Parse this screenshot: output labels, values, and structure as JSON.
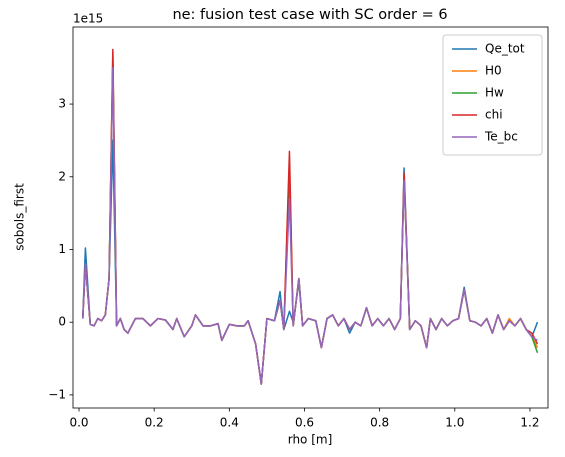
{
  "chart_data": {
    "type": "line",
    "title": "ne: fusion test case with SC order = 6",
    "xlabel": "rho [m]",
    "ylabel": "sobols_first",
    "y_offset_label": "1e15",
    "legend": "upper right",
    "grid": false,
    "xlim": [
      -0.016,
      1.248
    ],
    "ylim": [
      -1.18,
      4.06
    ],
    "xticks": [
      {
        "value": 0,
        "label": "0.0"
      },
      0.2,
      0.4,
      0.6,
      0.8,
      {
        "value": 1,
        "label": "1.0"
      },
      1.2
    ],
    "yticks": [
      {
        "value": -1,
        "label": "−1"
      },
      0,
      1,
      2,
      3
    ],
    "x": [
      0.01,
      0.017,
      0.03,
      0.04,
      0.05,
      0.06,
      0.07,
      0.08,
      0.09,
      0.1,
      0.11,
      0.12,
      0.13,
      0.15,
      0.17,
      0.19,
      0.21,
      0.23,
      0.25,
      0.26,
      0.28,
      0.3,
      0.31,
      0.33,
      0.35,
      0.37,
      0.38,
      0.4,
      0.42,
      0.44,
      0.45,
      0.47,
      0.485,
      0.5,
      0.52,
      0.535,
      0.545,
      0.56,
      0.57,
      0.585,
      0.595,
      0.61,
      0.63,
      0.645,
      0.66,
      0.675,
      0.69,
      0.705,
      0.72,
      0.735,
      0.75,
      0.765,
      0.78,
      0.795,
      0.81,
      0.825,
      0.84,
      0.855,
      0.865,
      0.88,
      0.895,
      0.91,
      0.925,
      0.935,
      0.95,
      0.965,
      0.98,
      0.995,
      1.01,
      1.025,
      1.04,
      1.055,
      1.07,
      1.085,
      1.1,
      1.115,
      1.13,
      1.145,
      1.16,
      1.175,
      1.19,
      1.205,
      1.22
    ],
    "series": [
      {
        "name": "Qe_tot",
        "color": "#1f77b4",
        "values": [
          0.05,
          1.02,
          -0.03,
          -0.05,
          0.05,
          0.02,
          0.1,
          0.6,
          2.5,
          -0.05,
          0.05,
          -0.1,
          -0.15,
          0.05,
          0.05,
          -0.05,
          0.05,
          0.03,
          -0.1,
          0.05,
          -0.2,
          -0.05,
          0.1,
          -0.05,
          -0.05,
          -0.02,
          -0.25,
          -0.03,
          -0.05,
          -0.05,
          0.02,
          -0.3,
          -0.85,
          0.05,
          0.02,
          0.42,
          -0.1,
          0.15,
          0.0,
          0.55,
          -0.05,
          0.05,
          0.02,
          -0.35,
          0.05,
          0.1,
          -0.05,
          0.05,
          -0.15,
          0.0,
          -0.05,
          0.2,
          -0.05,
          0.05,
          -0.05,
          0.05,
          -0.1,
          0.05,
          2.12,
          -0.1,
          0.02,
          -0.05,
          -0.35,
          0.05,
          -0.1,
          0.05,
          -0.05,
          0.02,
          0.05,
          0.48,
          0.02,
          0.0,
          -0.05,
          0.05,
          -0.15,
          0.1,
          -0.1,
          0.02,
          -0.05,
          0.05,
          -0.1,
          -0.2,
          0.0
        ]
      },
      {
        "name": "H0",
        "color": "#ff7f0e",
        "values": [
          0.05,
          0.8,
          -0.03,
          -0.05,
          0.05,
          0.02,
          0.1,
          0.6,
          3.7,
          -0.05,
          0.05,
          -0.1,
          -0.15,
          0.05,
          0.05,
          -0.05,
          0.05,
          0.03,
          -0.1,
          0.05,
          -0.2,
          -0.05,
          0.1,
          -0.05,
          -0.05,
          -0.02,
          -0.25,
          -0.03,
          -0.05,
          -0.05,
          0.02,
          -0.3,
          -0.85,
          0.05,
          0.02,
          0.3,
          -0.1,
          2.2,
          -0.05,
          0.6,
          -0.05,
          0.05,
          0.02,
          -0.35,
          0.05,
          0.1,
          -0.05,
          0.05,
          -0.1,
          0.0,
          -0.05,
          0.2,
          -0.05,
          0.05,
          -0.05,
          0.05,
          -0.1,
          0.05,
          2.0,
          -0.1,
          0.02,
          -0.05,
          -0.35,
          0.05,
          -0.1,
          0.05,
          -0.05,
          0.02,
          0.05,
          0.45,
          0.02,
          0.0,
          -0.05,
          0.05,
          -0.15,
          0.1,
          -0.1,
          0.05,
          -0.05,
          0.05,
          -0.1,
          -0.2,
          -0.35
        ]
      },
      {
        "name": "Hw",
        "color": "#2ca02c",
        "values": [
          0.05,
          0.8,
          -0.03,
          -0.05,
          0.05,
          0.02,
          0.1,
          0.6,
          3.6,
          -0.05,
          0.05,
          -0.1,
          -0.15,
          0.05,
          0.05,
          -0.05,
          0.05,
          0.03,
          -0.1,
          0.05,
          -0.2,
          -0.05,
          0.1,
          -0.05,
          -0.05,
          -0.02,
          -0.25,
          -0.03,
          -0.05,
          -0.05,
          0.02,
          -0.3,
          -0.85,
          0.05,
          0.02,
          0.3,
          -0.1,
          2.0,
          -0.05,
          0.6,
          -0.05,
          0.05,
          0.02,
          -0.35,
          0.05,
          0.1,
          -0.05,
          0.05,
          -0.1,
          0.0,
          -0.05,
          0.2,
          -0.05,
          0.05,
          -0.05,
          0.05,
          -0.1,
          0.05,
          2.0,
          -0.1,
          0.02,
          -0.05,
          -0.35,
          0.05,
          -0.1,
          0.05,
          -0.05,
          0.02,
          0.05,
          0.45,
          0.02,
          0.0,
          -0.05,
          0.05,
          -0.15,
          0.1,
          -0.1,
          0.02,
          -0.05,
          0.05,
          -0.1,
          -0.2,
          -0.42
        ]
      },
      {
        "name": "chi",
        "color": "#d62728",
        "values": [
          0.05,
          0.8,
          -0.03,
          -0.05,
          0.05,
          0.02,
          0.1,
          0.6,
          3.75,
          -0.05,
          0.05,
          -0.1,
          -0.15,
          0.05,
          0.05,
          -0.05,
          0.05,
          0.03,
          -0.1,
          0.05,
          -0.2,
          -0.05,
          0.1,
          -0.05,
          -0.05,
          -0.02,
          -0.25,
          -0.03,
          -0.05,
          -0.05,
          0.02,
          -0.3,
          -0.85,
          0.05,
          0.02,
          0.3,
          -0.1,
          2.35,
          -0.05,
          0.6,
          -0.05,
          0.05,
          0.02,
          -0.35,
          0.05,
          0.1,
          -0.05,
          0.05,
          -0.1,
          0.0,
          -0.05,
          0.2,
          -0.05,
          0.05,
          -0.05,
          0.05,
          -0.1,
          0.05,
          2.05,
          -0.1,
          0.02,
          -0.05,
          -0.35,
          0.05,
          -0.1,
          0.05,
          -0.05,
          0.02,
          0.05,
          0.45,
          0.02,
          0.0,
          -0.05,
          0.05,
          -0.15,
          0.1,
          -0.1,
          0.02,
          -0.05,
          0.05,
          -0.1,
          -0.15,
          -0.3
        ]
      },
      {
        "name": "Te_bc",
        "color": "#9467bd",
        "values": [
          0.05,
          0.8,
          -0.03,
          -0.05,
          0.05,
          0.02,
          0.1,
          0.6,
          3.5,
          -0.05,
          0.05,
          -0.1,
          -0.15,
          0.05,
          0.05,
          -0.05,
          0.05,
          0.03,
          -0.1,
          0.05,
          -0.2,
          -0.05,
          0.1,
          -0.05,
          -0.05,
          -0.02,
          -0.25,
          -0.03,
          -0.05,
          -0.05,
          0.02,
          -0.3,
          -0.85,
          0.05,
          0.02,
          0.3,
          -0.1,
          1.7,
          -0.05,
          0.6,
          -0.05,
          0.05,
          0.02,
          -0.35,
          0.05,
          0.1,
          -0.05,
          0.05,
          -0.1,
          0.0,
          -0.05,
          0.2,
          -0.05,
          0.05,
          -0.05,
          0.05,
          -0.1,
          0.05,
          1.95,
          -0.1,
          0.02,
          -0.05,
          -0.35,
          0.05,
          -0.1,
          0.05,
          -0.05,
          0.02,
          0.05,
          0.45,
          0.02,
          0.0,
          -0.05,
          0.05,
          -0.15,
          0.1,
          -0.1,
          0.02,
          -0.05,
          0.05,
          -0.1,
          -0.2,
          -0.25
        ]
      }
    ]
  }
}
